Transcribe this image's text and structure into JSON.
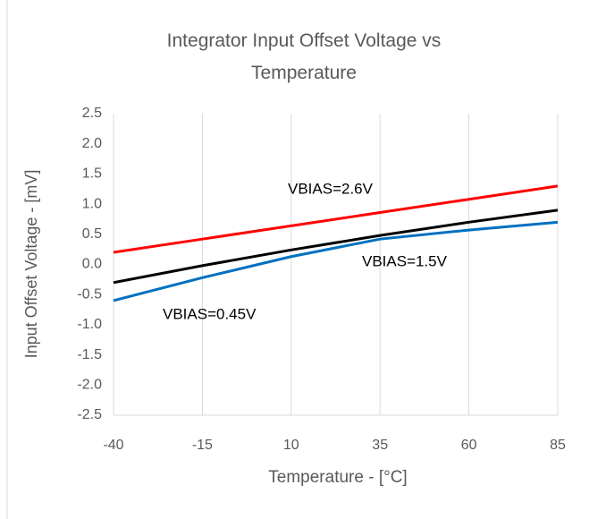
{
  "chart_data": {
    "type": "line",
    "title": "Integrator Input Offset Voltage vs Temperature",
    "xlabel": "Temperature - [°C]",
    "ylabel": "Input Offset Voltage - [mV]",
    "x": [
      -40,
      -15,
      10,
      35,
      60,
      85
    ],
    "series": [
      {
        "name": "VBIAS=2.6V",
        "color": "#ff0000",
        "values": [
          0.2,
          0.42,
          0.64,
          0.86,
          1.08,
          1.3
        ]
      },
      {
        "name": "VBIAS=1.5V",
        "color": "#000000",
        "values": [
          -0.3,
          -0.02,
          0.24,
          0.48,
          0.7,
          0.9
        ]
      },
      {
        "name": "VBIAS=0.45V",
        "color": "#0070c0",
        "values": [
          -0.6,
          -0.22,
          0.13,
          0.42,
          0.57,
          0.7
        ]
      }
    ],
    "xlim": [
      -40,
      85
    ],
    "xticks": [
      -40,
      -15,
      10,
      35,
      60,
      85
    ],
    "ylim": [
      -2.5,
      2.5
    ],
    "yticks": [
      -2.5,
      {
        "value": -2,
        "label": "-2.0"
      },
      -1.5,
      {
        "value": -1,
        "label": "-1.0"
      },
      -0.5,
      {
        "value": 0,
        "label": "0.0"
      },
      0.5,
      {
        "value": 1,
        "label": "1.0"
      },
      1.5,
      {
        "value": 2,
        "label": "2.0"
      },
      2.5
    ],
    "xgrid": true
  }
}
